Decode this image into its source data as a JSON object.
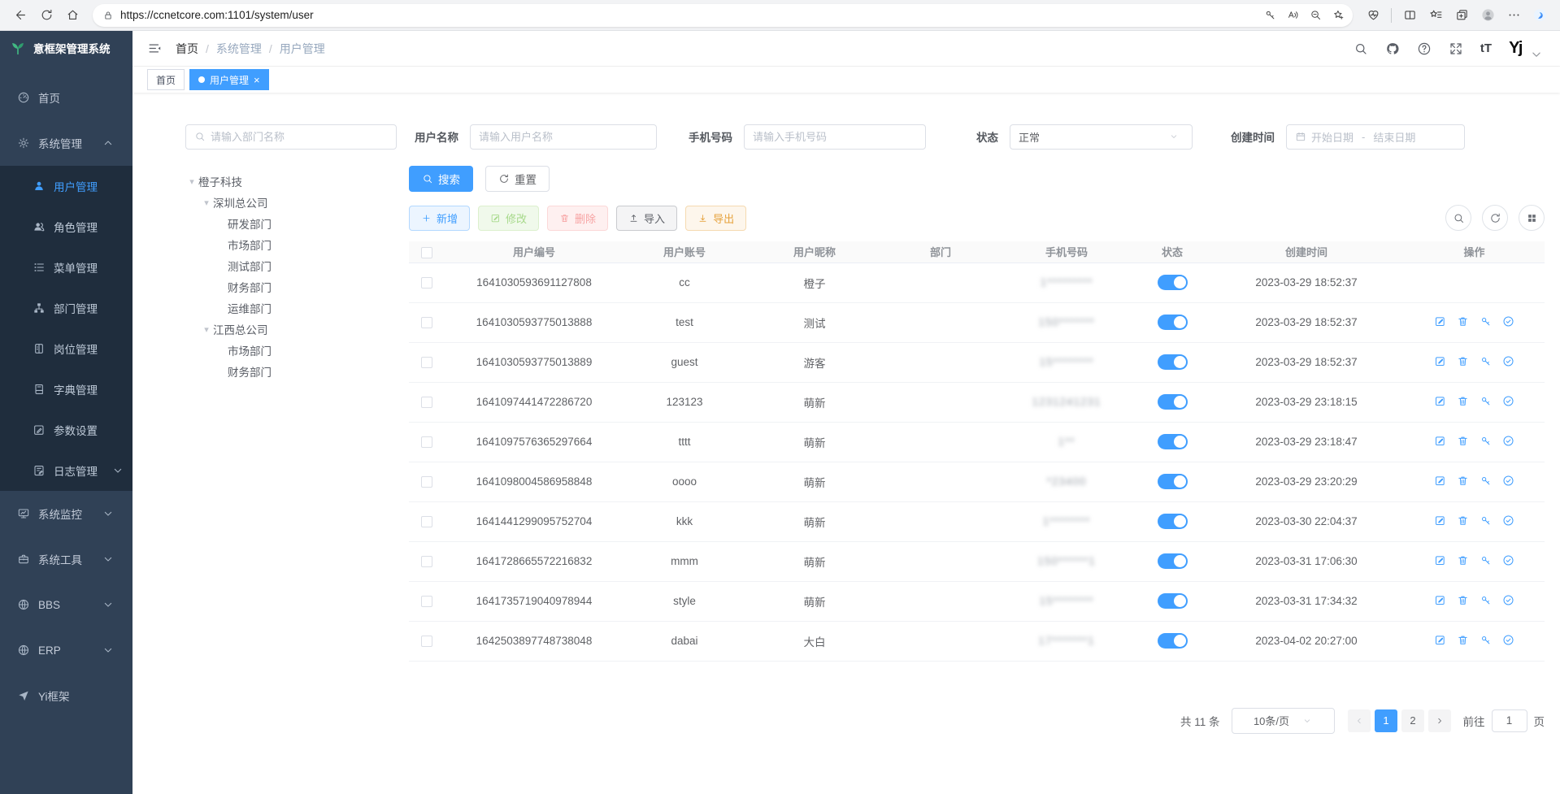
{
  "browser": {
    "url": "https://ccnetcore.com:1101/system/user"
  },
  "sidebar": {
    "title": "意框架管理系统",
    "menu": [
      {
        "key": "home",
        "icon": "dashboard",
        "label": "首页"
      },
      {
        "key": "system",
        "icon": "gear",
        "label": "系统管理",
        "caret": "up",
        "children": [
          {
            "key": "user-mgmt",
            "icon": "user",
            "label": "用户管理",
            "active": true
          },
          {
            "key": "role-mgmt",
            "icon": "users",
            "label": "角色管理"
          },
          {
            "key": "menu-mgmt",
            "icon": "menu-list",
            "label": "菜单管理"
          },
          {
            "key": "dept-mgmt",
            "icon": "org-tree",
            "label": "部门管理"
          },
          {
            "key": "post-mgmt",
            "icon": "badge",
            "label": "岗位管理"
          },
          {
            "key": "dict-mgmt",
            "icon": "dictionary",
            "label": "字典管理"
          },
          {
            "key": "param-settings",
            "icon": "edit-pen",
            "label": "参数设置"
          },
          {
            "key": "log-mgmt",
            "icon": "log-edit",
            "label": "日志管理",
            "caret": "down"
          }
        ]
      },
      {
        "key": "monitor",
        "icon": "monitor",
        "label": "系统监控",
        "caret": "down"
      },
      {
        "key": "tools",
        "icon": "toolbox",
        "label": "系统工具",
        "caret": "down"
      },
      {
        "key": "bbs",
        "icon": "globe",
        "label": "BBS",
        "caret": "down"
      },
      {
        "key": "erp",
        "icon": "globe",
        "label": "ERP",
        "caret": "down"
      },
      {
        "key": "yi-frame",
        "icon": "paper-plane",
        "label": "Yi框架"
      }
    ]
  },
  "topbar": {
    "breadcrumb": [
      "首页",
      "系统管理",
      "用户管理"
    ],
    "logo_text": "Yj"
  },
  "tabs": [
    {
      "key": "home",
      "label": "首页",
      "active": false,
      "closable": false
    },
    {
      "key": "user-mgmt",
      "label": "用户管理",
      "active": true,
      "closable": true
    }
  ],
  "filters": {
    "dept_placeholder": "请输入部门名称",
    "username_label": "用户名称",
    "username_placeholder": "请输入用户名称",
    "phone_label": "手机号码",
    "phone_placeholder": "请输入手机号码",
    "status_label": "状态",
    "status_value": "正常",
    "created_label": "创建时间",
    "date_start": "开始日期",
    "date_sep": "-",
    "date_end": "结束日期",
    "search_label": "搜索",
    "reset_label": "重置"
  },
  "tree": [
    {
      "label": "橙子科技",
      "depth": 0,
      "expandable": true
    },
    {
      "label": "深圳总公司",
      "depth": 1,
      "expandable": true
    },
    {
      "label": "研发部门",
      "depth": 2,
      "expandable": false
    },
    {
      "label": "市场部门",
      "depth": 2,
      "expandable": false
    },
    {
      "label": "测试部门",
      "depth": 2,
      "expandable": false
    },
    {
      "label": "财务部门",
      "depth": 2,
      "expandable": false
    },
    {
      "label": "运维部门",
      "depth": 2,
      "expandable": false
    },
    {
      "label": "江西总公司",
      "depth": 1,
      "expandable": true
    },
    {
      "label": "市场部门",
      "depth": 2,
      "expandable": false
    },
    {
      "label": "财务部门",
      "depth": 2,
      "expandable": false
    }
  ],
  "toolbar": {
    "add_label": "新增",
    "modify_label": "修改",
    "delete_label": "删除",
    "import_label": "导入",
    "export_label": "导出"
  },
  "table": {
    "columns": [
      "用户编号",
      "用户账号",
      "用户昵称",
      "部门",
      "手机号码",
      "状态",
      "创建时间",
      "操作"
    ],
    "rows": [
      {
        "id": "1641030593691127808",
        "account": "cc",
        "nickname": "橙子",
        "department": "",
        "phone": "1*********",
        "phone_blurred": true,
        "enabled": true,
        "created": "2023-03-29 18:52:37",
        "has_actions": false
      },
      {
        "id": "1641030593775013888",
        "account": "test",
        "nickname": "测试",
        "department": "",
        "phone": "150*******",
        "phone_blurred": true,
        "enabled": true,
        "created": "2023-03-29 18:52:37",
        "has_actions": true
      },
      {
        "id": "1641030593775013889",
        "account": "guest",
        "nickname": "游客",
        "department": "",
        "phone": "15********",
        "phone_blurred": true,
        "enabled": true,
        "created": "2023-03-29 18:52:37",
        "has_actions": true
      },
      {
        "id": "1641097441472286720",
        "account": "123123",
        "nickname": "萌新",
        "department": "",
        "phone": "1231241231",
        "phone_blurred": true,
        "enabled": true,
        "created": "2023-03-29 23:18:15",
        "has_actions": true
      },
      {
        "id": "1641097576365297664",
        "account": "tttt",
        "nickname": "萌新",
        "department": "",
        "phone": "1**",
        "phone_blurred": true,
        "enabled": true,
        "created": "2023-03-29 23:18:47",
        "has_actions": true
      },
      {
        "id": "1641098004586958848",
        "account": "oooo",
        "nickname": "萌新",
        "department": "",
        "phone": "*23400",
        "phone_blurred": true,
        "enabled": true,
        "created": "2023-03-29 23:20:29",
        "has_actions": true
      },
      {
        "id": "1641441299095752704",
        "account": "kkk",
        "nickname": "萌新",
        "department": "",
        "phone": "1********",
        "phone_blurred": true,
        "enabled": true,
        "created": "2023-03-30 22:04:37",
        "has_actions": true
      },
      {
        "id": "1641728665572216832",
        "account": "mmm",
        "nickname": "萌新",
        "department": "",
        "phone": "150******1",
        "phone_blurred": true,
        "enabled": true,
        "created": "2023-03-31 17:06:30",
        "has_actions": true
      },
      {
        "id": "1641735719040978944",
        "account": "style",
        "nickname": "萌新",
        "department": "",
        "phone": "15********",
        "phone_blurred": true,
        "enabled": true,
        "created": "2023-03-31 17:34:32",
        "has_actions": true
      },
      {
        "id": "1642503897748738048",
        "account": "dabai",
        "nickname": "大白",
        "department": "",
        "phone": "17*******1",
        "phone_blurred": true,
        "enabled": true,
        "created": "2023-04-02 20:27:00",
        "has_actions": true
      }
    ]
  },
  "pagination": {
    "total_label": "共 11 条",
    "page_size_label": "10条/页",
    "pages": [
      "1",
      "2"
    ],
    "active_page": "1",
    "goto_label": "前往",
    "goto_value": "1",
    "unit_label": "页"
  }
}
